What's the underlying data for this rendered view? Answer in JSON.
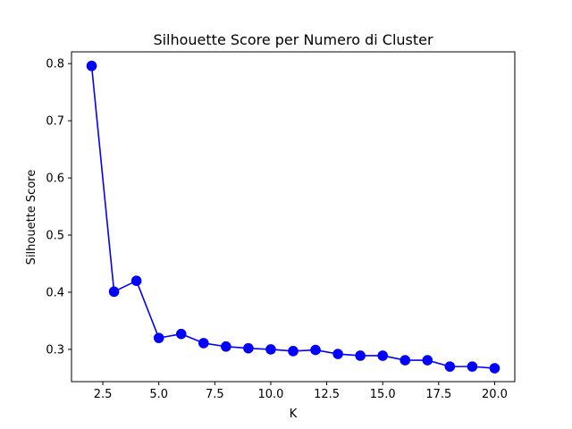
{
  "chart_data": {
    "type": "line",
    "title": "Silhouette Score per Numero di Cluster",
    "xlabel": "K",
    "ylabel": "Silhouette Score",
    "xlim": [
      1.1,
      20.9
    ],
    "ylim": [
      0.2436,
      0.8206
    ],
    "x_ticks": [
      2.5,
      5.0,
      7.5,
      10.0,
      12.5,
      15.0,
      17.5,
      20.0
    ],
    "x_tick_labels": [
      "2.5",
      "5.0",
      "7.5",
      "10.0",
      "12.5",
      "15.0",
      "17.5",
      "20.0"
    ],
    "y_ticks": [
      0.3,
      0.4,
      0.5,
      0.6,
      0.7,
      0.8
    ],
    "y_tick_labels": [
      "0.3",
      "0.4",
      "0.5",
      "0.6",
      "0.7",
      "0.8"
    ],
    "grid": false,
    "marker": "circle",
    "series": [
      {
        "color": "#0000ff",
        "x": [
          2,
          3,
          4,
          5,
          6,
          7,
          8,
          9,
          10,
          11,
          12,
          13,
          14,
          15,
          16,
          17,
          18,
          19,
          20
        ],
        "y": [
          0.796,
          0.401,
          0.42,
          0.32,
          0.327,
          0.311,
          0.305,
          0.302,
          0.3,
          0.297,
          0.299,
          0.292,
          0.289,
          0.289,
          0.281,
          0.281,
          0.27,
          0.27,
          0.267
        ]
      }
    ]
  }
}
